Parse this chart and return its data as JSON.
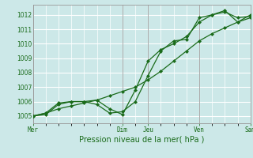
{
  "background_color": "#cce8e8",
  "plot_bg_color": "#cce8e8",
  "grid_color": "#ffffff",
  "line_color": "#1a6b1a",
  "title": "Pression niveau de la mer( hPa )",
  "ylim": [
    1004.5,
    1012.7
  ],
  "yticks": [
    1005,
    1006,
    1007,
    1008,
    1009,
    1010,
    1011,
    1012
  ],
  "day_labels": [
    "Mer",
    "Dim",
    "Jeu",
    "Ven",
    "Sam"
  ],
  "day_positions": [
    0,
    3.5,
    4.5,
    6.5,
    8.5
  ],
  "series1": {
    "x": [
      0,
      0.5,
      1.0,
      1.5,
      2.0,
      2.5,
      3.0,
      3.5,
      4.0,
      4.5,
      5.0,
      5.5,
      6.0,
      6.5,
      7.0,
      7.5,
      8.0,
      8.5
    ],
    "y": [
      1005.0,
      1005.1,
      1005.8,
      1006.0,
      1006.0,
      1005.8,
      1005.2,
      1005.3,
      1006.0,
      1007.8,
      1009.5,
      1010.2,
      1010.3,
      1011.8,
      1012.0,
      1012.3,
      1011.5,
      1011.8
    ]
  },
  "series2": {
    "x": [
      0,
      0.5,
      1.0,
      1.5,
      2.0,
      2.5,
      3.0,
      3.5,
      4.0,
      4.5,
      5.0,
      5.5,
      6.0,
      6.5,
      7.0,
      7.5,
      8.0,
      8.5
    ],
    "y": [
      1005.0,
      1005.2,
      1005.9,
      1006.0,
      1006.0,
      1006.1,
      1005.5,
      1005.1,
      1006.8,
      1008.8,
      1009.6,
      1010.0,
      1010.5,
      1011.5,
      1012.0,
      1012.2,
      1011.8,
      1011.9
    ]
  },
  "series3": {
    "x": [
      0,
      0.5,
      1.0,
      1.5,
      2.0,
      2.5,
      3.0,
      3.5,
      4.0,
      4.5,
      5.0,
      5.5,
      6.0,
      6.5,
      7.0,
      7.5,
      8.0,
      8.5
    ],
    "y": [
      1005.0,
      1005.2,
      1005.5,
      1005.7,
      1005.9,
      1006.1,
      1006.4,
      1006.7,
      1007.0,
      1007.5,
      1008.1,
      1008.8,
      1009.5,
      1010.2,
      1010.7,
      1011.1,
      1011.5,
      1012.0
    ]
  },
  "xlim": [
    0,
    8.5
  ],
  "vline_positions": [
    0,
    3.5,
    4.5,
    6.5,
    8.5
  ],
  "tick_fontsize": 5.5,
  "xlabel_fontsize": 7
}
